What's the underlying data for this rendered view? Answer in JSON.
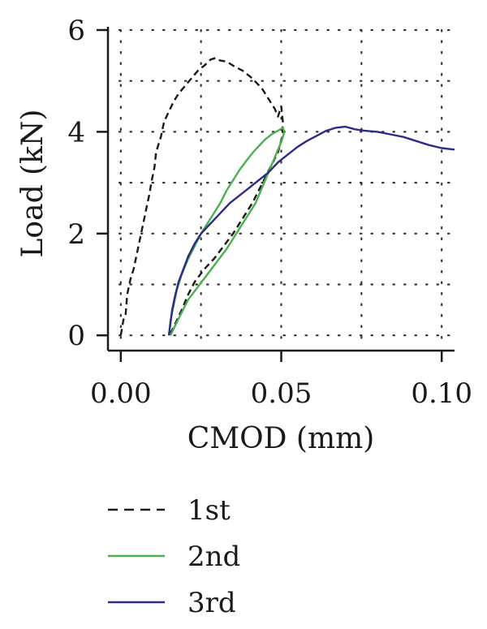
{
  "chart_data": {
    "type": "line",
    "title": "",
    "xlabel": "CMOD (mm)",
    "ylabel": "Load (kN)",
    "xlim": [
      -0.004,
      0.104
    ],
    "ylim": [
      -0.3,
      6.0
    ],
    "x_ticks": [
      0.0,
      0.05,
      0.1
    ],
    "x_tick_labels": [
      "0.00",
      "0.05",
      "0.10"
    ],
    "y_ticks": [
      0,
      2,
      4,
      6
    ],
    "y_tick_labels": [
      "0",
      "2",
      "4",
      "6"
    ],
    "grid": true,
    "legend_position": "bottom",
    "series": [
      {
        "name": "1st",
        "color": "#1a1a1a",
        "style": "dashed",
        "points": [
          [
            0.0,
            0.0
          ],
          [
            0.0008,
            0.3
          ],
          [
            0.0015,
            0.4
          ],
          [
            0.002,
            0.8
          ],
          [
            0.003,
            1.1
          ],
          [
            0.004,
            1.3
          ],
          [
            0.005,
            1.6
          ],
          [
            0.006,
            1.9
          ],
          [
            0.007,
            2.2
          ],
          [
            0.008,
            2.5
          ],
          [
            0.009,
            2.8
          ],
          [
            0.0095,
            3.0
          ],
          [
            0.0105,
            3.3
          ],
          [
            0.011,
            3.6
          ],
          [
            0.0125,
            3.9
          ],
          [
            0.0135,
            4.2
          ],
          [
            0.015,
            4.4
          ],
          [
            0.0165,
            4.6
          ],
          [
            0.018,
            4.75
          ],
          [
            0.02,
            4.9
          ],
          [
            0.022,
            5.05
          ],
          [
            0.024,
            5.2
          ],
          [
            0.026,
            5.3
          ],
          [
            0.028,
            5.42
          ],
          [
            0.0295,
            5.45
          ],
          [
            0.031,
            5.4
          ],
          [
            0.033,
            5.38
          ],
          [
            0.035,
            5.3
          ],
          [
            0.038,
            5.2
          ],
          [
            0.041,
            5.05
          ],
          [
            0.044,
            4.85
          ],
          [
            0.046,
            4.65
          ],
          [
            0.048,
            4.45
          ],
          [
            0.049,
            4.3
          ],
          [
            0.05,
            4.5
          ],
          [
            0.0505,
            4.2
          ],
          [
            0.0503,
            3.9
          ],
          [
            0.049,
            3.6
          ],
          [
            0.047,
            3.35
          ],
          [
            0.045,
            3.1
          ],
          [
            0.043,
            2.85
          ],
          [
            0.041,
            2.6
          ],
          [
            0.039,
            2.4
          ],
          [
            0.037,
            2.2
          ],
          [
            0.035,
            2.0
          ],
          [
            0.032,
            1.75
          ],
          [
            0.029,
            1.5
          ],
          [
            0.026,
            1.3
          ],
          [
            0.023,
            1.05
          ],
          [
            0.021,
            0.8
          ],
          [
            0.019,
            0.5
          ],
          [
            0.0175,
            0.3
          ],
          [
            0.016,
            0.1
          ],
          [
            0.015,
            0.0
          ]
        ]
      },
      {
        "name": "2nd",
        "color": "#4caf50",
        "style": "solid",
        "points": [
          [
            0.015,
            0.0
          ],
          [
            0.0155,
            0.3
          ],
          [
            0.0165,
            0.6
          ],
          [
            0.0175,
            0.9
          ],
          [
            0.019,
            1.2
          ],
          [
            0.021,
            1.5
          ],
          [
            0.023,
            1.75
          ],
          [
            0.025,
            2.0
          ],
          [
            0.027,
            2.2
          ],
          [
            0.029,
            2.4
          ],
          [
            0.031,
            2.6
          ],
          [
            0.033,
            2.85
          ],
          [
            0.035,
            3.05
          ],
          [
            0.037,
            3.25
          ],
          [
            0.039,
            3.42
          ],
          [
            0.041,
            3.58
          ],
          [
            0.043,
            3.72
          ],
          [
            0.045,
            3.85
          ],
          [
            0.047,
            3.95
          ],
          [
            0.049,
            4.02
          ],
          [
            0.0505,
            4.08
          ],
          [
            0.051,
            4.0
          ],
          [
            0.05,
            3.8
          ],
          [
            0.048,
            3.5
          ],
          [
            0.046,
            3.2
          ],
          [
            0.044,
            2.9
          ],
          [
            0.042,
            2.6
          ],
          [
            0.039,
            2.3
          ],
          [
            0.036,
            2.0
          ],
          [
            0.033,
            1.7
          ],
          [
            0.03,
            1.45
          ],
          [
            0.027,
            1.2
          ],
          [
            0.024,
            0.95
          ],
          [
            0.021,
            0.7
          ],
          [
            0.019,
            0.45
          ],
          [
            0.017,
            0.2
          ],
          [
            0.0155,
            0.0
          ]
        ]
      },
      {
        "name": "3rd",
        "color": "#2c2c86",
        "style": "solid",
        "points": [
          [
            0.015,
            0.0
          ],
          [
            0.0155,
            0.25
          ],
          [
            0.016,
            0.5
          ],
          [
            0.017,
            0.8
          ],
          [
            0.018,
            1.05
          ],
          [
            0.0195,
            1.3
          ],
          [
            0.021,
            1.55
          ],
          [
            0.023,
            1.8
          ],
          [
            0.025,
            2.0
          ],
          [
            0.028,
            2.2
          ],
          [
            0.031,
            2.4
          ],
          [
            0.034,
            2.6
          ],
          [
            0.037,
            2.75
          ],
          [
            0.04,
            2.9
          ],
          [
            0.043,
            3.05
          ],
          [
            0.046,
            3.2
          ],
          [
            0.049,
            3.4
          ],
          [
            0.052,
            3.55
          ],
          [
            0.055,
            3.7
          ],
          [
            0.058,
            3.82
          ],
          [
            0.061,
            3.92
          ],
          [
            0.064,
            4.02
          ],
          [
            0.067,
            4.08
          ],
          [
            0.07,
            4.1
          ],
          [
            0.073,
            4.05
          ],
          [
            0.076,
            4.02
          ],
          [
            0.08,
            4.0
          ],
          [
            0.084,
            3.95
          ],
          [
            0.088,
            3.9
          ],
          [
            0.092,
            3.82
          ],
          [
            0.096,
            3.74
          ],
          [
            0.1,
            3.68
          ],
          [
            0.104,
            3.65
          ]
        ]
      }
    ]
  }
}
